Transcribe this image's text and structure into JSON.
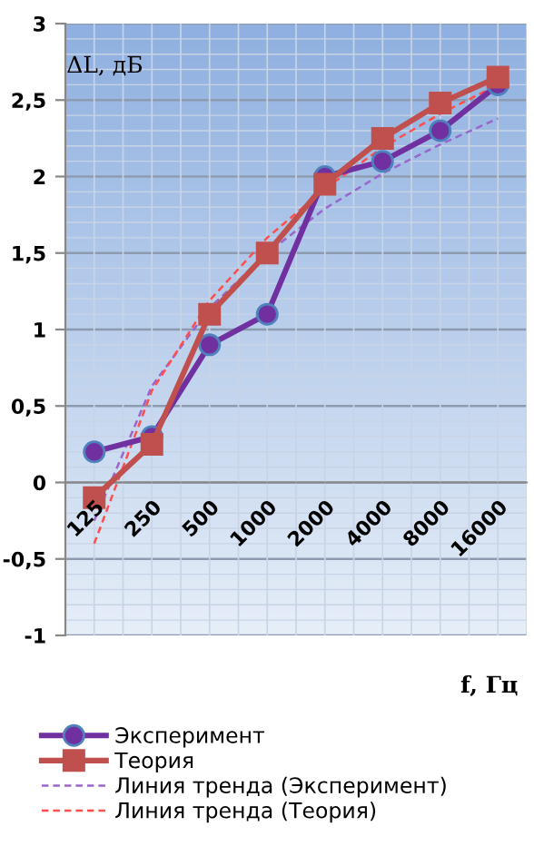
{
  "chart_data": {
    "type": "line",
    "categories": [
      "125",
      "250",
      "500",
      "1000",
      "2000",
      "4000",
      "8000",
      "16000"
    ],
    "series": [
      {
        "name": "Эксперимент",
        "color": "#7030a0",
        "marker": "circle",
        "line_style": "solid",
        "values": [
          0.2,
          0.3,
          0.9,
          1.1,
          2.0,
          2.1,
          2.3,
          2.6
        ]
      },
      {
        "name": "Теория",
        "color": "#c0504d",
        "marker": "square",
        "line_style": "solid",
        "values": [
          -0.1,
          0.25,
          1.1,
          1.5,
          1.95,
          2.25,
          2.48,
          2.65
        ]
      },
      {
        "name": "Линия тренда (Эксперимент)",
        "color": "#9966cc",
        "marker": "none",
        "line_style": "dashed",
        "values": [
          -0.25,
          0.63,
          1.14,
          1.5,
          1.79,
          2.02,
          2.21,
          2.38
        ]
      },
      {
        "name": "Линия тренда (Теория)",
        "color": "#ff4d4d",
        "marker": "none",
        "line_style": "dashed",
        "values": [
          -0.4,
          0.6,
          1.19,
          1.6,
          1.92,
          2.19,
          2.41,
          2.6
        ]
      }
    ],
    "ylim": [
      -1,
      3
    ],
    "yticks": [
      -1,
      {
        "value": -0.5,
        "label": "-0,5"
      },
      0,
      {
        "value": 0.5,
        "label": "0,5"
      },
      1,
      {
        "value": 1.5,
        "label": "1,5"
      },
      2,
      {
        "value": 2.5,
        "label": "2,5"
      },
      3
    ],
    "ylabel": "ΔL, дБ",
    "xlabel": "f, Гц",
    "grid": true,
    "legend": "bottom"
  }
}
